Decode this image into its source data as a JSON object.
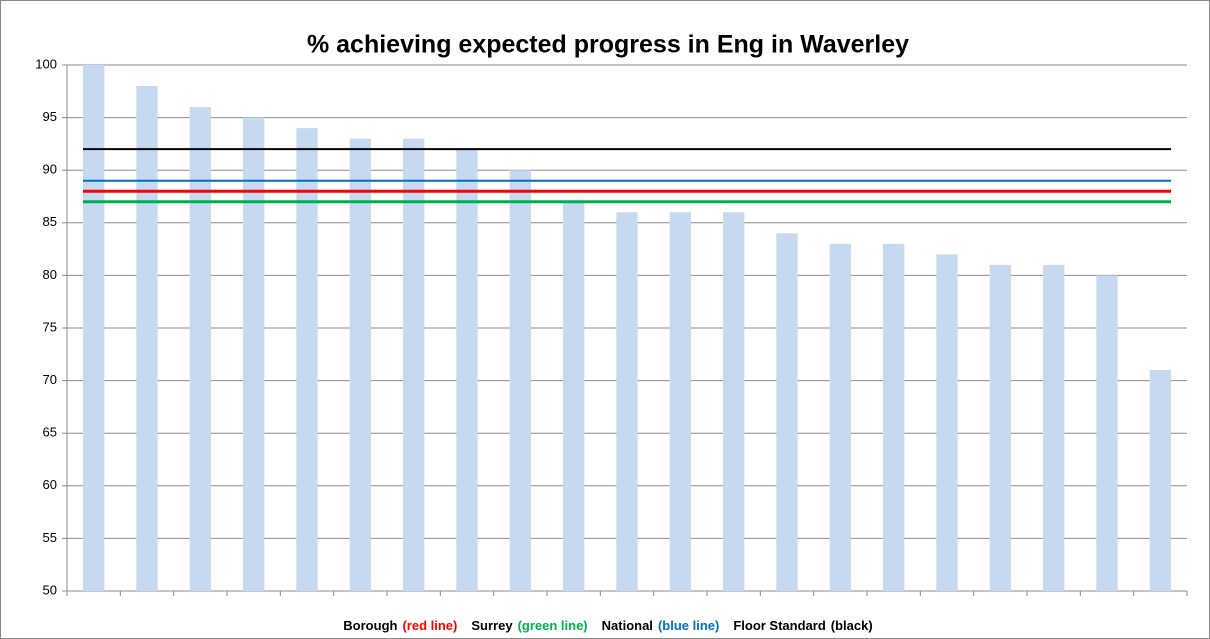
{
  "chart_data": {
    "type": "bar",
    "title": "% achieving expected progress in Eng in Waverley",
    "categories": [
      null,
      null,
      null,
      null,
      null,
      null,
      null,
      null,
      null,
      null,
      null,
      null,
      null,
      null,
      null,
      null,
      null,
      null,
      null,
      null,
      null
    ],
    "values": [
      100,
      98,
      96,
      95,
      94,
      93,
      93,
      92,
      90,
      87,
      86,
      86,
      86,
      84,
      83,
      83,
      82,
      81,
      81,
      80,
      71
    ],
    "color": "#c6d9f1",
    "ylim": [
      50,
      100
    ],
    "yticks": [
      50,
      55,
      60,
      65,
      70,
      75,
      80,
      85,
      90,
      95,
      100
    ],
    "grid": true,
    "reference_lines": [
      {
        "name": "Borough",
        "label": "(red line)",
        "color": "#ff0000",
        "value": 88
      },
      {
        "name": "Surrey",
        "label": "(green line)",
        "color": "#00b050",
        "value": 87
      },
      {
        "name": "National",
        "label": "(blue line)",
        "color": "#0070c0",
        "value": 89
      },
      {
        "name": "Floor Standard",
        "label": "(black)",
        "color": "#000000",
        "value": 92
      }
    ]
  }
}
